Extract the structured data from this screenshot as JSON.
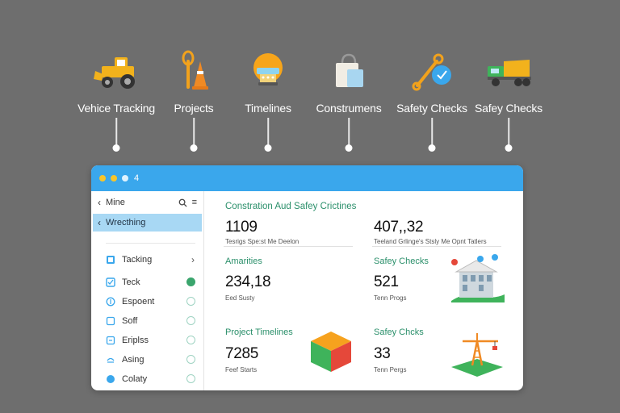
{
  "features": [
    {
      "label": "Vehice Tracking",
      "icon": "bulldozer-icon"
    },
    {
      "label": "Projects",
      "icon": "tools-cone-icon"
    },
    {
      "label": "Timelines",
      "icon": "lantern-icon"
    },
    {
      "label": "Construmens",
      "icon": "bag-icon"
    },
    {
      "label": "Safety Checks",
      "icon": "wrench-clock-icon"
    },
    {
      "label": "Safey Checks",
      "icon": "dump-truck-icon"
    }
  ],
  "window": {
    "tab_count": "4",
    "accent": "#3aa7ec"
  },
  "sidebar": {
    "back_label": "Mine",
    "active_label": "Wrecthing",
    "items": [
      {
        "label": "Tacking",
        "icon": "tacking-icon",
        "state": "chevron"
      },
      {
        "label": "Teck",
        "icon": "teck-icon",
        "state": "on"
      },
      {
        "label": "Espoent",
        "icon": "espoent-icon",
        "state": "off"
      },
      {
        "label": "Soff",
        "icon": "soff-icon",
        "state": "off"
      },
      {
        "label": "Eriplss",
        "icon": "eriplss-icon",
        "state": "off"
      },
      {
        "label": "Asing",
        "icon": "asing-icon",
        "state": "off"
      },
      {
        "label": "Colaty",
        "icon": "colaty-icon",
        "state": "off"
      }
    ]
  },
  "main": {
    "header": "Constration Aud Safey Crictines",
    "stat1": {
      "value": "1109",
      "label": "Tesrigs Spe:st Me Deelon"
    },
    "stat2": {
      "value": "407,,32",
      "label": "Teeland Grlinge's Stsly Me Opnt Tatlers"
    },
    "amenities": {
      "title": "Amarities",
      "value": "234,18",
      "label": "Eed Susty"
    },
    "safety1": {
      "title": "Safey Checks",
      "value": "521",
      "label": "Tenn Progs"
    },
    "timelines": {
      "title": "Project Timelines",
      "value": "7285",
      "label": "Feef Starts"
    },
    "safety2": {
      "title": "Safey Chcks",
      "value": "33",
      "label": "Tenn Pergs"
    }
  }
}
